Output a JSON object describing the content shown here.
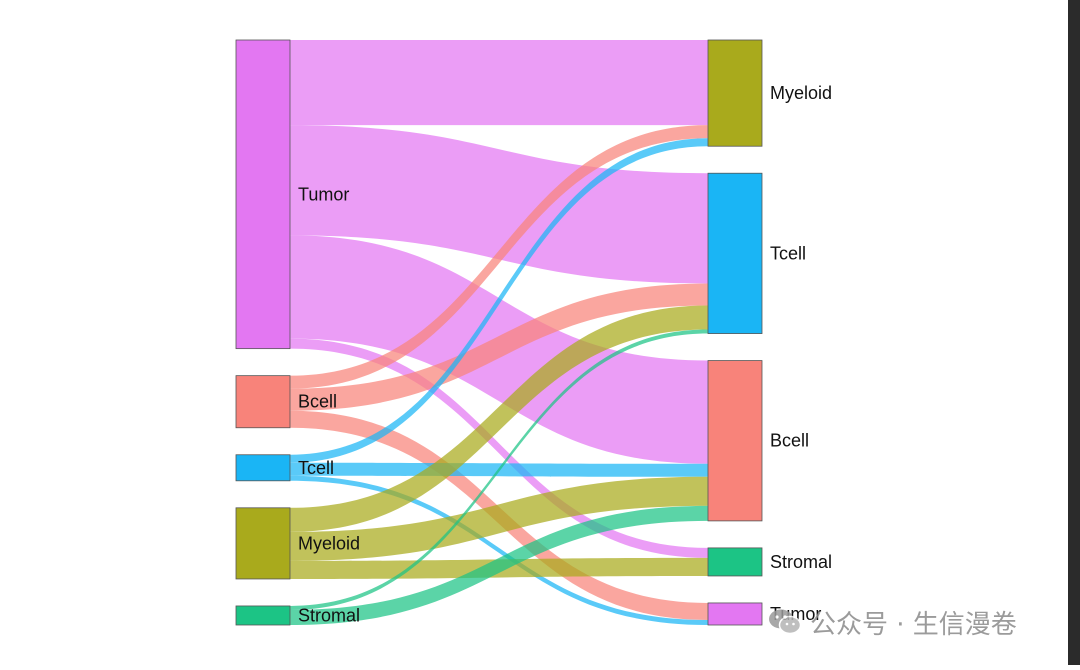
{
  "watermark": {
    "text": "公众号 · 生信漫卷"
  },
  "chart_data": {
    "type": "sankey",
    "title": "",
    "left_nodes": [
      {
        "key": "Tumor",
        "label": "Tumor",
        "color": "#E377F2"
      },
      {
        "key": "Bcell",
        "label": "Bcell",
        "color": "#F8837A"
      },
      {
        "key": "Tcell",
        "label": "Tcell",
        "color": "#1AB5F5"
      },
      {
        "key": "Myeloid",
        "label": "Myeloid",
        "color": "#A9AA1C"
      },
      {
        "key": "Stromal",
        "label": "Stromal",
        "color": "#1CC485"
      }
    ],
    "right_nodes": [
      {
        "key": "Myeloid",
        "label": "Myeloid",
        "color": "#A9AA1C"
      },
      {
        "key": "Tcell",
        "label": "Tcell",
        "color": "#1AB5F5"
      },
      {
        "key": "Bcell",
        "label": "Bcell",
        "color": "#F8837A"
      },
      {
        "key": "Stromal",
        "label": "Stromal",
        "color": "#1CC485"
      },
      {
        "key": "Tumor",
        "label": "Tumor",
        "color": "#E377F2"
      }
    ],
    "flows": [
      {
        "source": "Tumor",
        "target": "Myeloid",
        "value": 85
      },
      {
        "source": "Tumor",
        "target": "Tcell",
        "value": 110
      },
      {
        "source": "Tumor",
        "target": "Bcell",
        "value": 103
      },
      {
        "source": "Tumor",
        "target": "Stromal",
        "value": 10
      },
      {
        "source": "Bcell",
        "target": "Myeloid",
        "value": 13
      },
      {
        "source": "Bcell",
        "target": "Tcell",
        "value": 22
      },
      {
        "source": "Bcell",
        "target": "Tumor",
        "value": 17
      },
      {
        "source": "Tcell",
        "target": "Myeloid",
        "value": 8
      },
      {
        "source": "Tcell",
        "target": "Bcell",
        "value": 13
      },
      {
        "source": "Tcell",
        "target": "Tumor",
        "value": 5
      },
      {
        "source": "Myeloid",
        "target": "Tcell",
        "value": 24
      },
      {
        "source": "Myeloid",
        "target": "Bcell",
        "value": 29
      },
      {
        "source": "Myeloid",
        "target": "Stromal",
        "value": 18
      },
      {
        "source": "Stromal",
        "target": "Tcell",
        "value": 4
      },
      {
        "source": "Stromal",
        "target": "Bcell",
        "value": 15
      }
    ]
  }
}
